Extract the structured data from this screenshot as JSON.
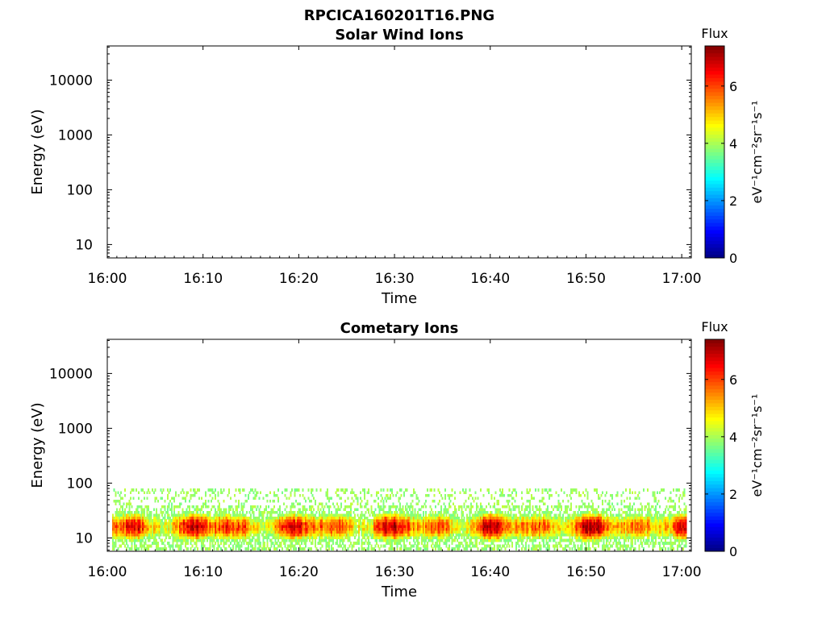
{
  "chart_data": {
    "type": "heatmap",
    "title": "RPCICA160201T16.PNG",
    "colorbar_colors": [
      "#00007f",
      "#0000ff",
      "#007fff",
      "#00ffff",
      "#7fff7f",
      "#ffff00",
      "#ff7f00",
      "#ff0000",
      "#7f0000"
    ],
    "panels": [
      {
        "subtitle": "Solar Wind Ions",
        "xlabel": "Time",
        "ylabel": "Energy (eV)",
        "x_ticks": [
          "16:00",
          "16:10",
          "16:20",
          "16:30",
          "16:40",
          "16:50",
          "17:00"
        ],
        "x_range_minutes": [
          0,
          61
        ],
        "y_scale": "log",
        "y_range": [
          5.7,
          42000
        ],
        "y_ticks": [
          {
            "value": 10,
            "label": "10"
          },
          {
            "value": 100,
            "label": "100"
          },
          {
            "value": 1000,
            "label": "1000"
          },
          {
            "value": 10000,
            "label": "10000"
          }
        ],
        "colorbar_label": "Flux",
        "colorbar_units": "eV⁻¹cm⁻²sr⁻¹s⁻¹",
        "colorbar_range": [
          0,
          7.4
        ],
        "colorbar_ticks": [
          {
            "value": 0,
            "label": "0"
          },
          {
            "value": 2,
            "label": "2"
          },
          {
            "value": 4,
            "label": "4"
          },
          {
            "value": 6,
            "label": "6"
          }
        ],
        "flux": null
      },
      {
        "subtitle": "Cometary Ions",
        "xlabel": "Time",
        "ylabel": "Energy (eV)",
        "x_ticks": [
          "16:00",
          "16:10",
          "16:20",
          "16:30",
          "16:40",
          "16:50",
          "17:00"
        ],
        "x_range_minutes": [
          0,
          61
        ],
        "y_scale": "log",
        "y_range": [
          5.7,
          42000
        ],
        "y_ticks": [
          {
            "value": 10,
            "label": "10"
          },
          {
            "value": 100,
            "label": "100"
          },
          {
            "value": 1000,
            "label": "1000"
          },
          {
            "value": 10000,
            "label": "10000"
          }
        ],
        "colorbar_label": "Flux",
        "colorbar_units": "eV⁻¹cm⁻²sr⁻¹s⁻¹",
        "colorbar_range": [
          0,
          7.4
        ],
        "colorbar_ticks": [
          {
            "value": 0,
            "label": "0"
          },
          {
            "value": 2,
            "label": "2"
          },
          {
            "value": 4,
            "label": "4"
          },
          {
            "value": 6,
            "label": "6"
          }
        ],
        "flux": {
          "time_range_minutes": [
            0.5,
            60.5
          ],
          "energy_range_eV": [
            6,
            80
          ],
          "peak_energy_eV": 16,
          "peak_flux": 6.6
        }
      }
    ]
  }
}
